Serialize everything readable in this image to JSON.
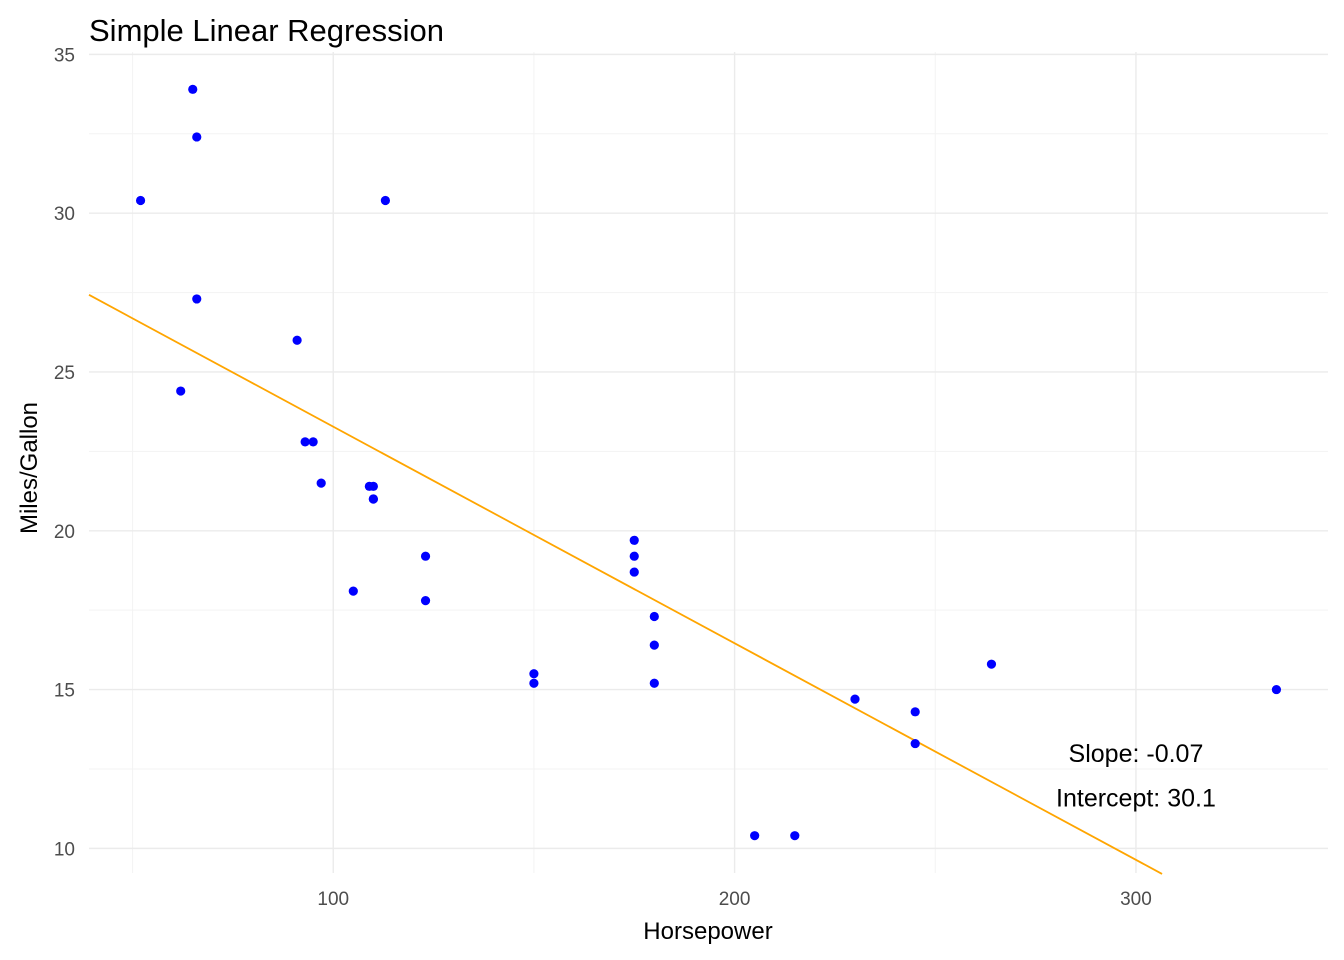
{
  "chart_data": {
    "type": "scatter",
    "title": "Simple Linear Regression",
    "xlabel": "Horsepower",
    "ylabel": "Miles/Gallon",
    "xlim": [
      39.15,
      347.85
    ],
    "ylim": [
      9.225,
      35.075
    ],
    "x_major_ticks": [
      100,
      200,
      300
    ],
    "y_major_ticks": [
      10,
      15,
      20,
      25,
      30,
      35
    ],
    "x_minor_ticks": [
      50,
      150,
      250
    ],
    "y_minor_ticks": [
      12.5,
      17.5,
      22.5,
      27.5,
      32.5
    ],
    "grid": true,
    "legend": "none",
    "point_color": "#0000ff",
    "line_color": "#ffa500",
    "series": [
      {
        "x": [
          110,
          110,
          93,
          110,
          175,
          105,
          245,
          62,
          95,
          123,
          123,
          180,
          180,
          180,
          205,
          215,
          230,
          66,
          52,
          65,
          97,
          150,
          150,
          245,
          175,
          66,
          91,
          113,
          264,
          175,
          335,
          109
        ],
        "y": [
          21.0,
          21.0,
          22.8,
          21.4,
          18.7,
          18.1,
          14.3,
          24.4,
          22.8,
          19.2,
          17.8,
          16.4,
          17.3,
          15.2,
          10.4,
          10.4,
          14.7,
          32.4,
          30.4,
          33.9,
          21.5,
          15.5,
          15.2,
          13.3,
          19.2,
          27.3,
          26.0,
          30.4,
          15.8,
          19.7,
          15.0,
          21.4
        ]
      }
    ],
    "regression_line": {
      "slope": -0.0682,
      "intercept": 30.0989,
      "x_range": [
        39.15,
        306.5
      ]
    },
    "annotations": [
      {
        "text": "Slope: -0.07",
        "x": 300,
        "y": 13
      },
      {
        "text": "Intercept: 30.1",
        "x": 300,
        "y": 11.6
      }
    ]
  }
}
